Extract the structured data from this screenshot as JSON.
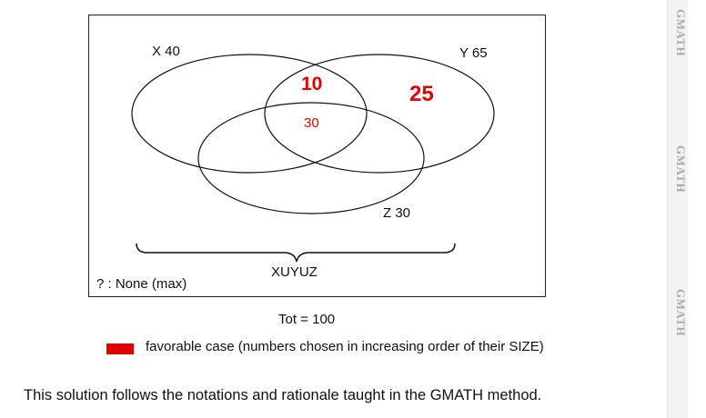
{
  "diagram": {
    "set_x_label": "X 40",
    "set_y_label": "Y 65",
    "set_z_label": "Z 30",
    "region_xy_only": "10",
    "region_y_only": "25",
    "region_xyz": "30",
    "union_label": "XUYUZ",
    "none_label": "? : None (max)"
  },
  "total_label": "Tot = 100",
  "legend": {
    "swatch_color": "#e00000",
    "text": "favorable case (numbers chosen in increasing order of their SIZE)"
  },
  "footer_note": "This solution follows the notations and rationale taught in the GMATH method.",
  "watermark": [
    "GMATH",
    "GMATH",
    "GMATH"
  ]
}
